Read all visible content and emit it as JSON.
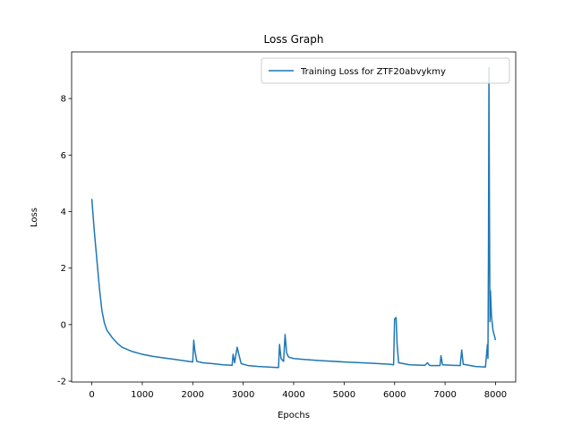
{
  "chart_data": {
    "type": "line",
    "title": "Loss Graph",
    "x_label": "Epochs",
    "y_label": "Loss",
    "x": [
      0,
      50,
      100,
      150,
      200,
      250,
      300,
      400,
      500,
      600,
      800,
      1000,
      1200,
      1400,
      1600,
      1800,
      2000,
      2020,
      2040,
      2080,
      2200,
      2400,
      2600,
      2780,
      2800,
      2830,
      2880,
      2920,
      2960,
      3100,
      3300,
      3500,
      3700,
      3720,
      3750,
      3800,
      3830,
      3860,
      3900,
      4000,
      4200,
      4500,
      5000,
      5500,
      5900,
      5980,
      6000,
      6030,
      6050,
      6080,
      6300,
      6600,
      6650,
      6700,
      6900,
      6920,
      6950,
      7300,
      7330,
      7360,
      7600,
      7800,
      7840,
      7850,
      7860,
      7870,
      7880,
      7890,
      7900,
      7920,
      7950,
      8000
    ],
    "series": [
      {
        "name": "Training Loss for ZTF20abvykmy",
        "color": "#1f77b4",
        "values": [
          4.45,
          3.3,
          2.3,
          1.3,
          0.5,
          0.05,
          -0.2,
          -0.45,
          -0.65,
          -0.8,
          -0.95,
          -1.05,
          -1.12,
          -1.17,
          -1.22,
          -1.27,
          -1.32,
          -0.55,
          -0.9,
          -1.3,
          -1.35,
          -1.38,
          -1.42,
          -1.44,
          -1.05,
          -1.35,
          -0.8,
          -1.1,
          -1.38,
          -1.45,
          -1.48,
          -1.5,
          -1.52,
          -0.7,
          -1.2,
          -1.3,
          -0.35,
          -1.0,
          -1.15,
          -1.2,
          -1.23,
          -1.27,
          -1.32,
          -1.36,
          -1.4,
          -1.42,
          0.2,
          0.25,
          -0.7,
          -1.35,
          -1.42,
          -1.44,
          -1.35,
          -1.45,
          -1.45,
          -1.1,
          -1.42,
          -1.45,
          -0.9,
          -1.4,
          -1.48,
          -1.5,
          -0.7,
          -1.2,
          2.4,
          9.1,
          4.0,
          0.1,
          1.2,
          0.3,
          -0.2,
          -0.55
        ]
      }
    ],
    "xlim": [
      -400,
      8400
    ],
    "ylim": [
      -2.03,
      9.65
    ],
    "xticks": [
      0,
      1000,
      2000,
      3000,
      4000,
      5000,
      6000,
      7000,
      8000
    ],
    "yticks": [
      -2,
      0,
      2,
      4,
      6,
      8
    ],
    "legend": "upper right"
  }
}
